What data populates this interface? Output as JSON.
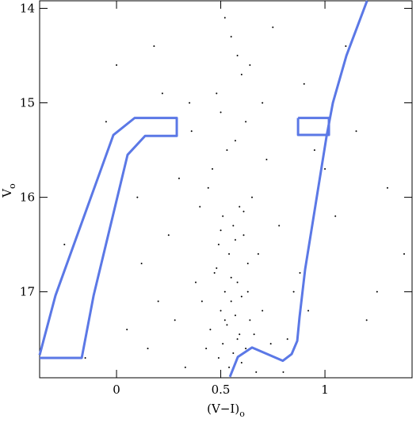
{
  "chart_data": {
    "type": "scatter",
    "x_label": "(V−I)",
    "x_label_sub": "o",
    "y_label": "V",
    "y_label_sub": "o",
    "xlim": [
      -0.369,
      1.418
    ],
    "ylim": [
      13.92,
      17.91
    ],
    "y_inverted": true,
    "xticks": [
      0,
      0.5,
      1
    ],
    "yticks": [
      14,
      15,
      16,
      17
    ],
    "point_color": "#000000",
    "x": [
      0.52,
      0.55,
      0.58,
      0.6,
      0.48,
      0.5,
      0.62,
      0.57,
      0.53,
      0.46,
      0.44,
      0.65,
      0.59,
      0.51,
      0.56,
      0.61,
      0.49,
      0.54,
      0.63,
      0.47,
      0.58,
      0.52,
      0.6,
      0.55,
      0.5,
      0.57,
      0.64,
      0.53,
      0.45,
      0.66,
      0.58,
      0.51,
      0.62,
      0.56,
      0.49,
      0.6,
      0.54,
      0.67,
      0.43,
      0.59,
      0.52,
      0.7,
      0.41,
      0.63,
      0.55,
      0.48,
      0.68,
      0.57,
      0.5,
      0.61,
      0.35,
      0.3,
      0.25,
      0.2,
      0.15,
      0.38,
      0.72,
      0.78,
      0.85,
      0.9,
      0.95,
      1.05,
      1.1,
      1.2,
      1.3,
      1.38,
      0.1,
      0.05,
      -0.05,
      -0.15,
      -0.25,
      0.0,
      0.22,
      0.33,
      0.75,
      0.82,
      0.88,
      1.15,
      1.25,
      0.4,
      0.28,
      0.12,
      0.7,
      0.8,
      0.92,
      1.0,
      0.18,
      0.36,
      0.64,
      0.74
    ],
    "y": [
      14.1,
      14.3,
      14.5,
      14.7,
      14.9,
      15.1,
      15.2,
      15.4,
      15.5,
      15.7,
      15.9,
      16.0,
      16.1,
      16.2,
      16.3,
      16.4,
      16.5,
      16.6,
      16.7,
      16.8,
      16.9,
      17.0,
      17.05,
      17.1,
      17.2,
      17.25,
      17.3,
      17.35,
      17.4,
      17.45,
      17.5,
      17.55,
      17.6,
      17.65,
      17.7,
      17.75,
      17.8,
      17.85,
      17.6,
      17.45,
      17.3,
      17.2,
      17.1,
      17.0,
      16.85,
      16.75,
      16.6,
      16.45,
      16.35,
      16.15,
      15.0,
      15.8,
      16.4,
      17.1,
      17.6,
      16.9,
      15.6,
      16.3,
      17.0,
      14.8,
      15.5,
      16.2,
      14.4,
      17.3,
      15.9,
      16.6,
      16.0,
      17.4,
      15.2,
      17.7,
      16.5,
      14.6,
      14.9,
      17.8,
      14.2,
      17.5,
      16.8,
      15.3,
      17.0,
      16.1,
      17.3,
      16.7,
      15.0,
      17.85,
      17.2,
      15.7,
      14.4,
      15.3,
      14.6,
      17.55
    ],
    "series": [
      {
        "name": "hb-box",
        "color": "#5b78e6",
        "x": [
          -0.369,
          -0.167,
          -0.11,
          0.053,
          0.137,
          0.289,
          0.289,
          0.087,
          -0.015,
          -0.293,
          -0.369
        ],
        "y": [
          17.7,
          17.7,
          17.04,
          15.55,
          15.35,
          15.35,
          15.16,
          15.16,
          15.34,
          17.04,
          17.67
        ]
      },
      {
        "name": "rc-box",
        "color": "#5b78e6",
        "x": [
          0.871,
          1.019,
          1.019,
          0.871,
          0.871
        ],
        "y": [
          15.16,
          15.16,
          15.34,
          15.34,
          15.16
        ]
      },
      {
        "name": "rgb-line",
        "color": "#5b78e6",
        "x": [
          1.202,
          1.103,
          1.038,
          1.008,
          0.954,
          0.905,
          0.878,
          0.867,
          0.84,
          0.798,
          0.734,
          0.65,
          0.582,
          0.544
        ],
        "y": [
          13.92,
          14.5,
          15.0,
          15.35,
          16.09,
          16.76,
          17.27,
          17.52,
          17.66,
          17.73,
          17.67,
          17.59,
          17.69,
          17.9
        ]
      }
    ]
  }
}
